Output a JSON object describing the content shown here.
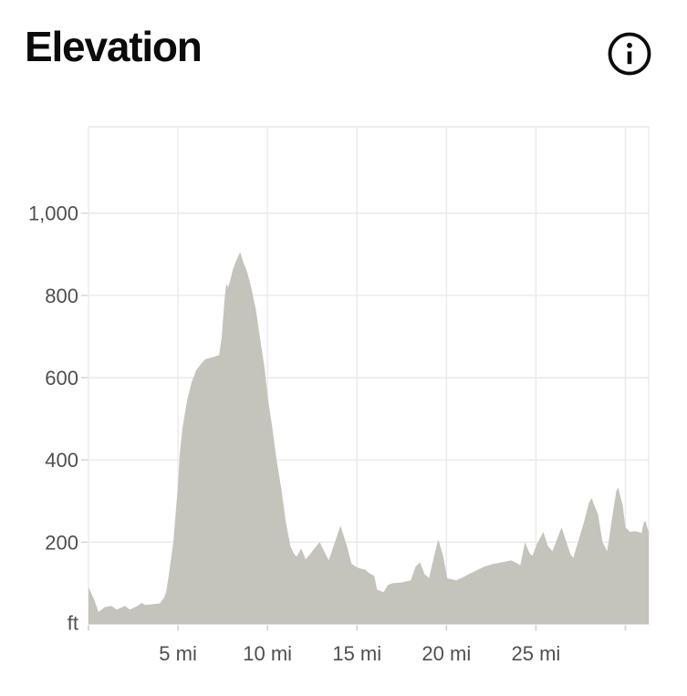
{
  "header": {
    "title": "Elevation"
  },
  "colors": {
    "background": "#ffffff",
    "title": "#0b0b0b",
    "icon": "#0b0b0b",
    "area_fill": "#c4c3bc",
    "gridline": "#e9e9e9",
    "tick": "#d6d6d3",
    "axis_label": "#4f4f4f"
  },
  "chart_data": {
    "type": "area",
    "title": "Elevation",
    "x_unit": "mi",
    "y_unit": "ft",
    "xlim": [
      0,
      31.3
    ],
    "ylim": [
      0,
      1210
    ],
    "grid": true,
    "x_gridlines_mi": [
      0,
      5,
      10,
      15,
      20,
      25,
      30
    ],
    "y_gridlines_ft": [
      200,
      400,
      600,
      800,
      1000
    ],
    "x_ticks": [
      {
        "mi": 5,
        "label": "5 mi"
      },
      {
        "mi": 10,
        "label": "10 mi"
      },
      {
        "mi": 15,
        "label": "15 mi"
      },
      {
        "mi": 20,
        "label": "20 mi"
      },
      {
        "mi": 25,
        "label": "25 mi"
      }
    ],
    "y_ticks": [
      {
        "ft": 1000,
        "label": "1,000"
      },
      {
        "ft": 800,
        "label": "800"
      },
      {
        "ft": 600,
        "label": "600"
      },
      {
        "ft": 400,
        "label": "400"
      },
      {
        "ft": 200,
        "label": "200"
      }
    ],
    "y_axis_bottom_label": "ft",
    "points": [
      [
        0,
        90
      ],
      [
        0.3,
        62
      ],
      [
        0.56,
        30
      ],
      [
        0.9,
        42
      ],
      [
        1.28,
        45
      ],
      [
        1.58,
        36
      ],
      [
        2.04,
        45
      ],
      [
        2.3,
        36
      ],
      [
        2.7,
        44
      ],
      [
        2.96,
        52
      ],
      [
        3.2,
        47
      ],
      [
        3.57,
        49
      ],
      [
        3.98,
        51
      ],
      [
        4.23,
        66
      ],
      [
        4.35,
        80
      ],
      [
        4.49,
        122
      ],
      [
        4.74,
        200
      ],
      [
        5.0,
        340
      ],
      [
        5.1,
        415
      ],
      [
        5.26,
        480
      ],
      [
        5.51,
        545
      ],
      [
        5.77,
        590
      ],
      [
        6.02,
        618
      ],
      [
        6.28,
        633
      ],
      [
        6.53,
        645
      ],
      [
        6.79,
        648
      ],
      [
        7.04,
        651
      ],
      [
        7.3,
        655
      ],
      [
        7.45,
        700
      ],
      [
        7.6,
        790
      ],
      [
        7.7,
        828
      ],
      [
        7.8,
        820
      ],
      [
        7.91,
        835
      ],
      [
        8.06,
        862
      ],
      [
        8.21,
        880
      ],
      [
        8.47,
        905
      ],
      [
        8.67,
        878
      ],
      [
        8.83,
        862
      ],
      [
        9.08,
        822
      ],
      [
        9.34,
        768
      ],
      [
        9.59,
        695
      ],
      [
        9.85,
        620
      ],
      [
        10.0,
        556
      ],
      [
        10.26,
        480
      ],
      [
        10.51,
        400
      ],
      [
        10.77,
        330
      ],
      [
        11.02,
        250
      ],
      [
        11.28,
        190
      ],
      [
        11.48,
        172
      ],
      [
        11.63,
        165
      ],
      [
        11.89,
        184
      ],
      [
        12.14,
        158
      ],
      [
        12.4,
        172
      ],
      [
        12.91,
        200
      ],
      [
        13.42,
        156
      ],
      [
        14.08,
        240
      ],
      [
        14.44,
        190
      ],
      [
        14.69,
        148
      ],
      [
        14.95,
        140
      ],
      [
        15.2,
        136
      ],
      [
        15.46,
        133
      ],
      [
        15.71,
        124
      ],
      [
        15.97,
        118
      ],
      [
        16.12,
        85
      ],
      [
        16.48,
        78
      ],
      [
        16.73,
        96
      ],
      [
        16.99,
        100
      ],
      [
        17.5,
        102
      ],
      [
        18.01,
        107
      ],
      [
        18.27,
        140
      ],
      [
        18.52,
        151
      ],
      [
        18.78,
        122
      ],
      [
        19.03,
        113
      ],
      [
        19.29,
        162
      ],
      [
        19.54,
        207
      ],
      [
        19.8,
        169
      ],
      [
        20.05,
        112
      ],
      [
        20.56,
        107
      ],
      [
        21.07,
        118
      ],
      [
        21.58,
        129
      ],
      [
        22.09,
        140
      ],
      [
        22.6,
        147
      ],
      [
        23.11,
        151
      ],
      [
        23.62,
        156
      ],
      [
        23.88,
        150
      ],
      [
        24.13,
        144
      ],
      [
        24.39,
        200
      ],
      [
        24.64,
        173
      ],
      [
        24.8,
        167
      ],
      [
        25.05,
        195
      ],
      [
        25.41,
        225
      ],
      [
        25.66,
        191
      ],
      [
        25.92,
        178
      ],
      [
        26.43,
        236
      ],
      [
        26.94,
        169
      ],
      [
        27.09,
        162
      ],
      [
        27.7,
        251
      ],
      [
        27.96,
        296
      ],
      [
        28.11,
        307
      ],
      [
        28.47,
        267
      ],
      [
        28.72,
        200
      ],
      [
        28.98,
        178
      ],
      [
        29.23,
        251
      ],
      [
        29.49,
        324
      ],
      [
        29.59,
        333
      ],
      [
        29.85,
        289
      ],
      [
        30.0,
        236
      ],
      [
        30.26,
        225
      ],
      [
        30.51,
        227
      ],
      [
        30.77,
        224
      ],
      [
        30.9,
        222
      ],
      [
        31.02,
        247
      ],
      [
        31.12,
        251
      ],
      [
        31.3,
        224
      ]
    ]
  }
}
